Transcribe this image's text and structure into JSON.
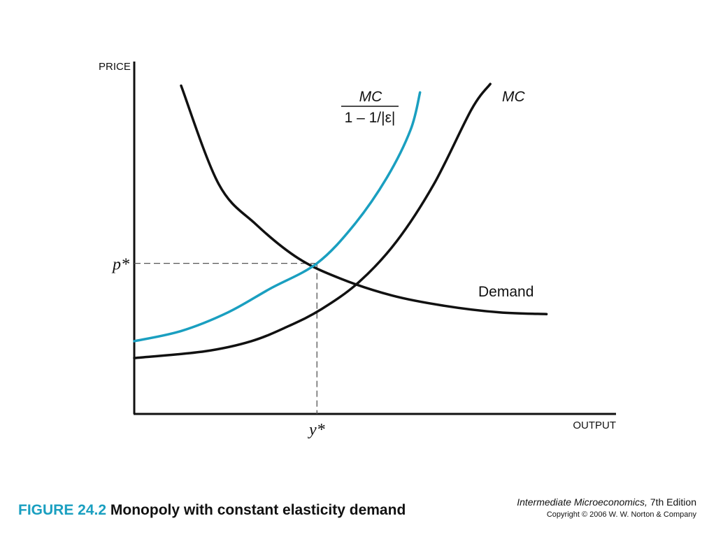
{
  "chart_data": {
    "type": "line",
    "xlabel": "OUTPUT",
    "ylabel": "PRICE",
    "xlim": [
      0,
      10
    ],
    "ylim": [
      0,
      10
    ],
    "grid": false,
    "legend": "none",
    "series": [
      {
        "name": "Demand",
        "color": "#111111",
        "points": [
          [
            1,
            9.7
          ],
          [
            1.8,
            6.8
          ],
          [
            2.6,
            5.6
          ],
          [
            3.5,
            4.6
          ],
          [
            4.4,
            4.0
          ],
          [
            5.5,
            3.5
          ],
          [
            6.6,
            3.2
          ],
          [
            7.8,
            3.0
          ],
          [
            8.8,
            2.95
          ]
        ]
      },
      {
        "name": "MC",
        "color": "#111111",
        "points": [
          [
            0,
            1.65
          ],
          [
            1.5,
            1.85
          ],
          [
            2.5,
            2.15
          ],
          [
            3.3,
            2.6
          ],
          [
            4.0,
            3.1
          ],
          [
            4.8,
            3.9
          ],
          [
            5.6,
            5.1
          ],
          [
            6.4,
            6.8
          ],
          [
            7.2,
            9.0
          ],
          [
            7.6,
            9.75
          ]
        ]
      },
      {
        "name": "MC/(1 − 1/|ε|)",
        "color": "#1a9fc0",
        "points": [
          [
            0,
            2.15
          ],
          [
            1.0,
            2.45
          ],
          [
            2.0,
            3.0
          ],
          [
            2.9,
            3.7
          ],
          [
            3.9,
            4.45
          ],
          [
            4.7,
            5.6
          ],
          [
            5.4,
            7.0
          ],
          [
            5.9,
            8.4
          ],
          [
            6.1,
            9.5
          ]
        ]
      }
    ],
    "annotations": {
      "p_star": {
        "label": "p*",
        "value": 4.45
      },
      "y_star": {
        "label": "y*",
        "value": 3.9
      }
    },
    "curve_labels": {
      "demand": "Demand",
      "mc": "MC",
      "markup_numerator": "MC",
      "markup_denominator": "1 – 1/|ε|"
    }
  },
  "caption": {
    "figure_number": "FIGURE 24.2",
    "title": "Monopoly with constant elasticity demand"
  },
  "credits": {
    "book_title": "Intermediate Microeconomics,",
    "edition": "7th Edition",
    "copyright": "Copyright © 2006 W. W. Norton & Company"
  }
}
